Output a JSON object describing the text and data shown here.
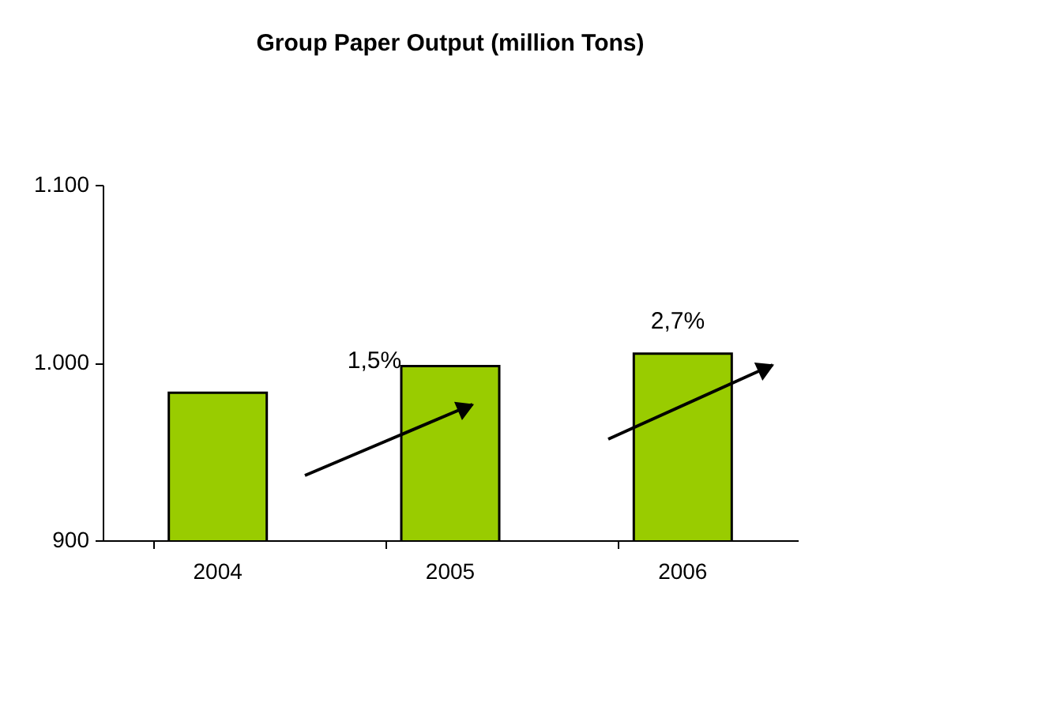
{
  "chart_data": {
    "type": "bar",
    "title": "Group Paper Output  (million Tons)",
    "categories": [
      "2004",
      "2005",
      "2006"
    ],
    "values": [
      983,
      998,
      1005
    ],
    "color": "#99cc00",
    "ylim": [
      900,
      1100
    ],
    "yticks": [
      900,
      {
        "value": 1000,
        "label": "1.000"
      },
      {
        "value": 1100,
        "label": "1.100"
      }
    ],
    "grid": false,
    "annotations": [
      "1,5%",
      "2,7%"
    ]
  }
}
